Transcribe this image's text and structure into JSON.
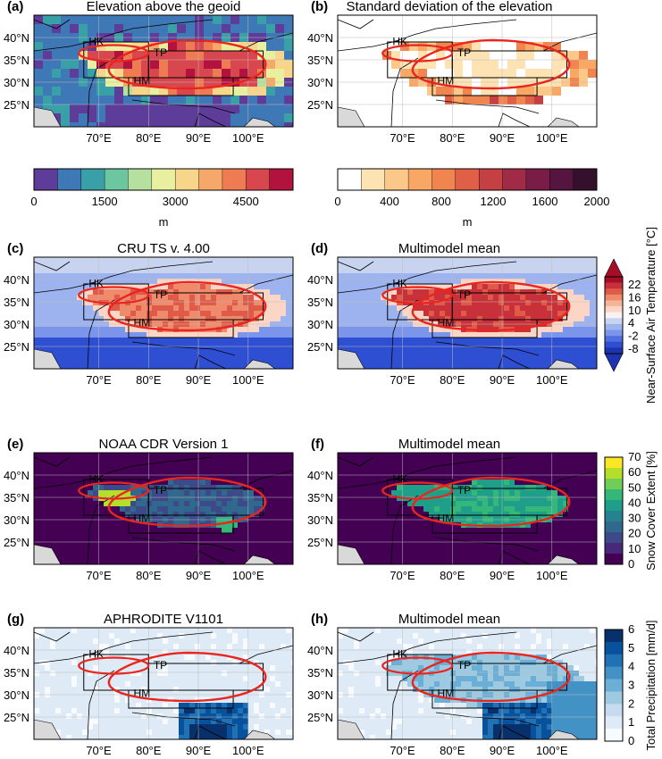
{
  "panels": [
    {
      "id": "a",
      "letter": "(a)",
      "title": "Elevation above the geoid",
      "field": "elev"
    },
    {
      "id": "b",
      "letter": "(b)",
      "title": "Standard deviation of the elevation",
      "field": "std"
    },
    {
      "id": "c",
      "letter": "(c)",
      "title": "CRU TS v. 4.00",
      "field": "temp_obs"
    },
    {
      "id": "d",
      "letter": "(d)",
      "title": "Multimodel mean",
      "field": "temp_mod"
    },
    {
      "id": "e",
      "letter": "(e)",
      "title": "NOAA CDR Version 1",
      "field": "snow_obs"
    },
    {
      "id": "f",
      "letter": "(f)",
      "title": "Multimodel mean",
      "field": "snow_mod"
    },
    {
      "id": "g",
      "letter": "(g)",
      "title": "APHRODITE V1101",
      "field": "prec_obs"
    },
    {
      "id": "h",
      "letter": "(h)",
      "title": "Multimodel mean",
      "field": "prec_mod"
    }
  ],
  "lon_ticks": [
    "70°E",
    "80°E",
    "90°E",
    "100°E"
  ],
  "lat_ticks": [
    "40°N",
    "35°N",
    "30°N",
    "25°N"
  ],
  "regions": [
    "HK",
    "TP",
    "HM"
  ],
  "colorbars": {
    "elev": {
      "ticks": [
        "0",
        "1500",
        "3000",
        "4500"
      ],
      "label": "m",
      "colors": [
        "#5e3c99",
        "#3f78b6",
        "#3aa0a8",
        "#6cc6a0",
        "#b6e0a0",
        "#e8f0a0",
        "#f7d68c",
        "#f5a86a",
        "#ef7b52",
        "#d9474e",
        "#b3123e"
      ]
    },
    "std": {
      "ticks": [
        "0",
        "400",
        "800",
        "1200",
        "1600",
        "2000"
      ],
      "label": "m",
      "colors": [
        "#ffffff",
        "#fde3b4",
        "#fcc889",
        "#f8a864",
        "#f08550",
        "#e06047",
        "#c44043",
        "#9f2b46",
        "#7a1d46",
        "#561540",
        "#34102a"
      ]
    },
    "temp": {
      "ticks": [
        "22",
        "16",
        "10",
        "4",
        "-2",
        "-8"
      ],
      "label": "Near-Surface Air Temperature [°C]",
      "colors": [
        "#a50f26",
        "#c9313a",
        "#e05a4a",
        "#ef8a6a",
        "#f6b49a",
        "#fbd6c6",
        "#f7f3f4",
        "#c8d3f0",
        "#9db3ef",
        "#7a95ea",
        "#4f6fe0",
        "#2f4fd3",
        "#1f33b0"
      ]
    },
    "snow": {
      "ticks": [
        "70",
        "60",
        "50",
        "40",
        "30",
        "20",
        "10",
        "0"
      ],
      "label": "Snow Cover Extent [%]",
      "colors": [
        "#fde725",
        "#b5de2b",
        "#6ece58",
        "#35b779",
        "#1f9e89",
        "#26828e",
        "#31688e",
        "#3e4989",
        "#482878",
        "#440154"
      ]
    },
    "prec": {
      "ticks": [
        "6",
        "5",
        "4",
        "3",
        "2",
        "1",
        "0"
      ],
      "label": "Total Precipitation [mm/d]",
      "colors": [
        "#08306b",
        "#08519c",
        "#2171b5",
        "#4292c6",
        "#6baed6",
        "#9ecae1",
        "#c6dbef",
        "#deebf7",
        "#f7fbff"
      ]
    }
  }
}
